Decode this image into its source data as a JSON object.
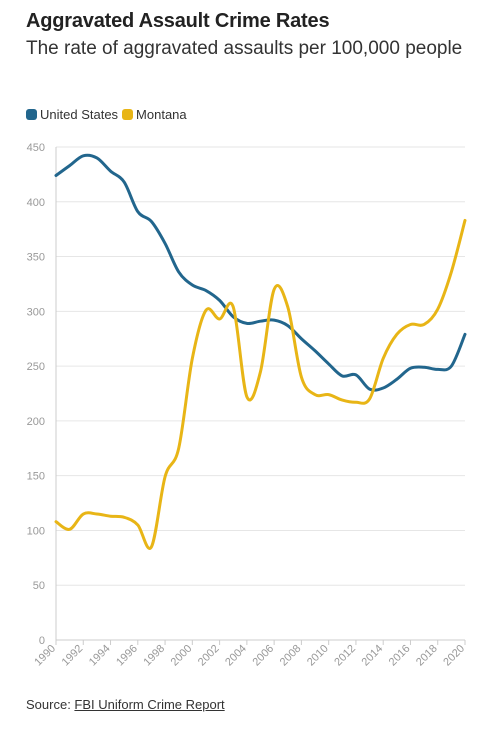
{
  "title": "Aggravated Assault Crime Rates",
  "subtitle": "The rate of aggravated assaults per 100,000 people",
  "footer": {
    "source_prefix": "Source: ",
    "source_link": "FBI Uniform Crime Report"
  },
  "colors": {
    "united_states": "#22668d",
    "montana": "#e8b516",
    "grid": "#e6e6e6",
    "axis": "#cccccc"
  },
  "chart_data": {
    "type": "line",
    "title": "Aggravated Assault Crime Rates",
    "subtitle": "The rate of aggravated assaults per 100,000 people",
    "xlabel": "",
    "ylabel": "",
    "ylim": [
      0,
      450
    ],
    "xlim": [
      1990,
      2020
    ],
    "grid": true,
    "legend_position": "top-left",
    "yticks": [
      0,
      50,
      100,
      150,
      200,
      250,
      300,
      350,
      400,
      450
    ],
    "xticks": [
      "1990",
      "1992",
      "1994",
      "1996",
      "1998",
      "2000",
      "2002",
      "2004",
      "2006",
      "2008",
      "2010",
      "2012",
      "2014",
      "2016",
      "2018",
      "2020"
    ],
    "x": [
      1990,
      1991,
      1992,
      1993,
      1994,
      1995,
      1996,
      1997,
      1998,
      1999,
      2000,
      2001,
      2002,
      2003,
      2004,
      2005,
      2006,
      2007,
      2008,
      2009,
      2010,
      2011,
      2012,
      2013,
      2014,
      2015,
      2016,
      2017,
      2018,
      2019,
      2020
    ],
    "series": [
      {
        "name": "United States",
        "color": "#22668d",
        "values": [
          424,
          433,
          442,
          440,
          428,
          418,
          391,
          382,
          362,
          336,
          324,
          319,
          310,
          295,
          289,
          291,
          292,
          287,
          275,
          264,
          252,
          241,
          242,
          229,
          230,
          238,
          248,
          249,
          247,
          250,
          279
        ]
      },
      {
        "name": "Montana",
        "color": "#e8b516",
        "values": [
          108,
          101,
          115,
          115,
          113,
          112,
          105,
          85,
          149,
          175,
          257,
          301,
          293,
          304,
          222,
          245,
          320,
          304,
          240,
          224,
          224,
          219,
          217,
          220,
          257,
          279,
          288,
          288,
          302,
          336,
          383
        ]
      }
    ]
  }
}
